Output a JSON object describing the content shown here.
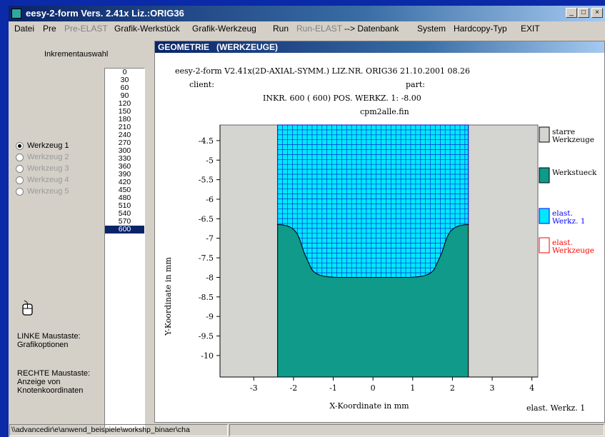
{
  "window": {
    "title": "eesy-2-form Vers. 2.41x   Liz.:ORIG36",
    "controls": {
      "minimize": "_",
      "maximize": "□",
      "close": "×"
    }
  },
  "menu": [
    "Datei",
    "Pre",
    "Pre-ELAST",
    "Grafik-Werkstück",
    "Grafik-Werkzeug",
    "Run",
    "Run-ELAST",
    "--> Datenbank",
    "System",
    "Hardcopy-Typ",
    "EXIT"
  ],
  "menu_disabled": [
    "Pre-ELAST",
    "Run-ELAST"
  ],
  "sidebar": {
    "increment_label": "Inkrementauswahl",
    "increments": [
      "0",
      "30",
      "60",
      "90",
      "120",
      "150",
      "180",
      "210",
      "240",
      "270",
      "300",
      "330",
      "360",
      "390",
      "420",
      "450",
      "480",
      "510",
      "540",
      "570",
      "600"
    ],
    "selected_increment": "600",
    "tools": [
      {
        "label": "Werkzeug 1",
        "checked": true,
        "enabled": true
      },
      {
        "label": "Werkzeug 2",
        "checked": false,
        "enabled": false
      },
      {
        "label": "Werkzeug 3",
        "checked": false,
        "enabled": false
      },
      {
        "label": "Werkzeug 4",
        "checked": false,
        "enabled": false
      },
      {
        "label": "Werkzeug 5",
        "checked": false,
        "enabled": false
      }
    ],
    "left_mouse_title": "LINKE Maustaste:",
    "left_mouse_text": "Grafikoptionen",
    "right_mouse_title": "RECHTE Maustaste:",
    "right_mouse_line1": "Anzeige von",
    "right_mouse_line2": "Knotenkoordinaten"
  },
  "graphic_window": {
    "title": "GEOMETRIE   (WERKZEUGE)",
    "header_line1": "eesy-2-form V2.41x(2D-AXIAL-SYMM.)   LIZ.NR. ORIG36    21.10.2001  08.26",
    "client_label": "client:",
    "part_label": "part:",
    "header_line3": "INKR.  600 ( 600)      POS. WERKZ. 1:    -8.00",
    "filename": "cpm2alle.fin"
  },
  "legend": [
    {
      "line1": "starre",
      "line2": "Werkzeuge",
      "color": "#d4d4d0",
      "border": "#000000",
      "text_color": "#000000"
    },
    {
      "line1": "Werkstueck",
      "line2": "",
      "color": "#0f9a8a",
      "border": "#000000",
      "text_color": "#000000"
    },
    {
      "line1": "elast.",
      "line2": "Werkz. 1",
      "color": "#00e8ff",
      "border": "#0000ff",
      "text_color": "#0000ff"
    },
    {
      "line1": "elast.",
      "line2": "Werkzeuge",
      "color": "#ffffff",
      "border": "#ff0000",
      "text_color": "#ff0000"
    }
  ],
  "footer_label": "elast. Werkz. 1",
  "chart_data": {
    "type": "other",
    "xlabel": "X-Koordinate in mm",
    "ylabel": "Y-Koordinate in mm",
    "x_ticks": [
      -3,
      -2,
      -1,
      0,
      1,
      2,
      3,
      4
    ],
    "y_ticks": [
      -4.5,
      -5,
      -5.5,
      -6,
      -6.5,
      -7,
      -7.5,
      -8,
      -8.5,
      -9,
      -9.5,
      -10
    ],
    "xlim": [
      -3.85,
      4.15
    ],
    "ylim": [
      -10.55,
      -4.1
    ],
    "left_rigid_tool_x": [
      -3.85,
      -2.4
    ],
    "right_rigid_tool_x": [
      2.4,
      4.15
    ],
    "workpiece_top_y": -6.65,
    "groove_bottom_y": -8.0,
    "groove_x": [
      -1.55,
      1.55
    ],
    "workpiece_bottom_y": -10.55
  },
  "statusbar": {
    "path": "\\\\advancedir\\e\\anwend_beispiele\\workshp_binaer\\cha",
    "right": ""
  }
}
